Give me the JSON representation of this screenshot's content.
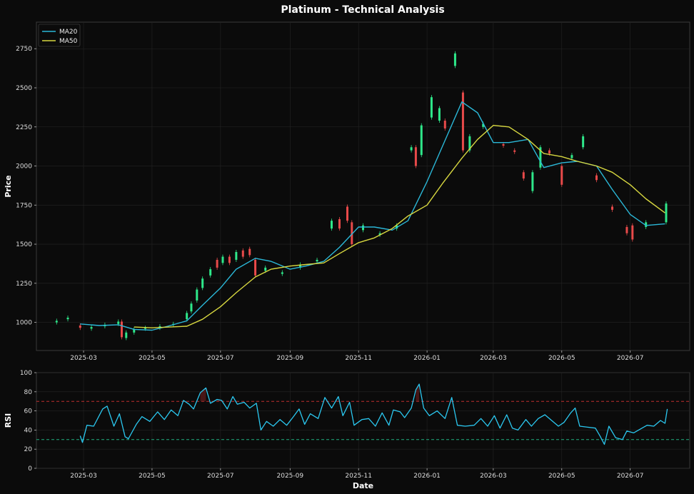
{
  "title": "Platinum - Technical Analysis",
  "colors": {
    "background": "#0b0b0b",
    "up": "#2ee88a",
    "down": "#e84a4a",
    "ma20": "#2bb8d8",
    "ma50": "#d8d840",
    "rsi": "#2bc8f0",
    "overbought": "#c03030",
    "oversold": "#20b080"
  },
  "chart_data": [
    {
      "type": "candlestick",
      "title": "Platinum - Technical Analysis",
      "ylabel": "Price",
      "xlabel": "",
      "ylim": [
        820,
        2920
      ],
      "xlim": [
        "2025-01-18",
        "2026-08-23"
      ],
      "x_ticks": [
        "2025-03",
        "2025-05",
        "2025-07",
        "2025-09",
        "2025-11",
        "2026-01",
        "2026-03",
        "2026-05",
        "2026-07"
      ],
      "y_ticks": [
        1000,
        1250,
        1500,
        1750,
        2000,
        2250,
        2500,
        2750
      ],
      "legend": {
        "position": "top-left",
        "entries": [
          "MA20",
          "MA50"
        ]
      },
      "grid": true,
      "series": [
        {
          "name": "MA20",
          "points": [
            [
              "2025-02-26",
              990
            ],
            [
              "2025-03-15",
              980
            ],
            [
              "2025-04-01",
              985
            ],
            [
              "2025-04-15",
              955
            ],
            [
              "2025-05-01",
              950
            ],
            [
              "2025-05-15",
              975
            ],
            [
              "2025-06-01",
              1010
            ],
            [
              "2025-06-15",
              1110
            ],
            [
              "2025-07-01",
              1220
            ],
            [
              "2025-07-15",
              1340
            ],
            [
              "2025-08-01",
              1410
            ],
            [
              "2025-08-15",
              1390
            ],
            [
              "2025-09-01",
              1340
            ],
            [
              "2025-09-15",
              1360
            ],
            [
              "2025-10-01",
              1390
            ],
            [
              "2025-10-15",
              1480
            ],
            [
              "2025-11-01",
              1610
            ],
            [
              "2025-11-15",
              1610
            ],
            [
              "2025-12-01",
              1590
            ],
            [
              "2025-12-15",
              1650
            ],
            [
              "2026-01-01",
              1900
            ],
            [
              "2026-01-15",
              2130
            ],
            [
              "2026-02-01",
              2410
            ],
            [
              "2026-02-15",
              2340
            ],
            [
              "2026-03-01",
              2150
            ],
            [
              "2026-03-15",
              2150
            ],
            [
              "2026-04-01",
              2170
            ],
            [
              "2026-04-15",
              1990
            ],
            [
              "2026-05-01",
              2020
            ],
            [
              "2026-05-15",
              2030
            ],
            [
              "2026-06-01",
              2000
            ],
            [
              "2026-06-15",
              1850
            ],
            [
              "2026-07-01",
              1690
            ],
            [
              "2026-07-15",
              1620
            ],
            [
              "2026-08-01",
              1630
            ]
          ]
        },
        {
          "name": "MA50",
          "points": [
            [
              "2025-04-15",
              970
            ],
            [
              "2025-05-01",
              965
            ],
            [
              "2025-06-01",
              975
            ],
            [
              "2025-06-15",
              1020
            ],
            [
              "2025-07-01",
              1100
            ],
            [
              "2025-07-15",
              1190
            ],
            [
              "2025-08-01",
              1290
            ],
            [
              "2025-08-15",
              1340
            ],
            [
              "2025-09-01",
              1360
            ],
            [
              "2025-09-15",
              1370
            ],
            [
              "2025-10-01",
              1380
            ],
            [
              "2025-10-15",
              1440
            ],
            [
              "2025-11-01",
              1510
            ],
            [
              "2025-11-15",
              1540
            ],
            [
              "2025-12-01",
              1600
            ],
            [
              "2025-12-15",
              1680
            ],
            [
              "2026-01-01",
              1750
            ],
            [
              "2026-01-15",
              1890
            ],
            [
              "2026-02-01",
              2050
            ],
            [
              "2026-02-15",
              2170
            ],
            [
              "2026-03-01",
              2260
            ],
            [
              "2026-03-15",
              2250
            ],
            [
              "2026-04-01",
              2170
            ],
            [
              "2026-04-15",
              2080
            ],
            [
              "2026-05-01",
              2060
            ],
            [
              "2026-05-15",
              2030
            ],
            [
              "2026-06-01",
              2000
            ],
            [
              "2026-06-15",
              1960
            ],
            [
              "2026-07-01",
              1880
            ],
            [
              "2026-07-15",
              1790
            ],
            [
              "2026-08-01",
              1700
            ]
          ]
        }
      ],
      "candles": [
        [
          "2025-02-05",
          1000,
          1010
        ],
        [
          "2025-02-15",
          1020,
          1030
        ],
        [
          "2025-02-26",
          980,
          965
        ],
        [
          "2025-03-08",
          960,
          970
        ],
        [
          "2025-03-20",
          975,
          985
        ],
        [
          "2025-04-01",
          990,
          1005
        ],
        [
          "2025-04-04",
          1005,
          905
        ],
        [
          "2025-04-08",
          900,
          935
        ],
        [
          "2025-04-15",
          935,
          955
        ],
        [
          "2025-04-25",
          960,
          965
        ],
        [
          "2025-05-08",
          965,
          975
        ],
        [
          "2025-05-20",
          985,
          990
        ],
        [
          "2025-06-01",
          1020,
          1060
        ],
        [
          "2025-06-05",
          1070,
          1120
        ],
        [
          "2025-06-10",
          1140,
          1210
        ],
        [
          "2025-06-15",
          1220,
          1280
        ],
        [
          "2025-06-22",
          1300,
          1340
        ],
        [
          "2025-06-28",
          1400,
          1350
        ],
        [
          "2025-07-03",
          1380,
          1420
        ],
        [
          "2025-07-09",
          1420,
          1380
        ],
        [
          "2025-07-15",
          1400,
          1450
        ],
        [
          "2025-07-21",
          1460,
          1420
        ],
        [
          "2025-07-27",
          1470,
          1430
        ],
        [
          "2025-08-01",
          1400,
          1300
        ],
        [
          "2025-08-10",
          1330,
          1350
        ],
        [
          "2025-08-25",
          1310,
          1320
        ],
        [
          "2025-09-10",
          1350,
          1370
        ],
        [
          "2025-09-25",
          1390,
          1400
        ],
        [
          "2025-10-08",
          1600,
          1650
        ],
        [
          "2025-10-15",
          1660,
          1600
        ],
        [
          "2025-10-22",
          1740,
          1650
        ],
        [
          "2025-10-26",
          1640,
          1500
        ],
        [
          "2025-11-05",
          1590,
          1620
        ],
        [
          "2025-11-20",
          1560,
          1570
        ],
        [
          "2025-12-05",
          1600,
          1620
        ],
        [
          "2025-12-18",
          2100,
          2120
        ],
        [
          "2025-12-22",
          2120,
          2000
        ],
        [
          "2025-12-27",
          2070,
          2260
        ],
        [
          "2026-01-05",
          2310,
          2440
        ],
        [
          "2026-01-12",
          2290,
          2370
        ],
        [
          "2026-01-17",
          2290,
          2240
        ],
        [
          "2026-01-26",
          2640,
          2720
        ],
        [
          "2026-02-02",
          2470,
          2100
        ],
        [
          "2026-02-08",
          2100,
          2190
        ],
        [
          "2026-02-20",
          2250,
          2270
        ],
        [
          "2026-03-10",
          2140,
          2130
        ],
        [
          "2026-03-20",
          2100,
          2090
        ],
        [
          "2026-03-28",
          1960,
          1920
        ],
        [
          "2026-04-05",
          1840,
          1960
        ],
        [
          "2026-04-12",
          1990,
          2120
        ],
        [
          "2026-04-20",
          2100,
          2080
        ],
        [
          "2026-05-01",
          2000,
          1880
        ],
        [
          "2026-05-10",
          2050,
          2070
        ],
        [
          "2026-05-20",
          2120,
          2190
        ],
        [
          "2026-06-01",
          1940,
          1910
        ],
        [
          "2026-06-15",
          1740,
          1720
        ],
        [
          "2026-06-28",
          1610,
          1570
        ],
        [
          "2026-07-03",
          1620,
          1530
        ],
        [
          "2026-07-15",
          1610,
          1640
        ],
        [
          "2026-08-02",
          1640,
          1760
        ]
      ]
    },
    {
      "type": "line",
      "title": "",
      "xlabel": "Date",
      "ylabel": "RSI",
      "ylim": [
        0,
        100
      ],
      "xlim": [
        "2025-01-18",
        "2026-08-23"
      ],
      "x_ticks": [
        "2025-03",
        "2025-05",
        "2025-07",
        "2025-09",
        "2025-11",
        "2026-01",
        "2026-03",
        "2026-05",
        "2026-07"
      ],
      "y_ticks": [
        0,
        20,
        40,
        60,
        80,
        100
      ],
      "reference_lines": [
        70,
        30
      ],
      "grid": true,
      "series": [
        {
          "name": "",
          "points": [
            [
              "2025-02-26",
              34
            ],
            [
              "2025-02-28",
              27
            ],
            [
              "2025-03-04",
              45
            ],
            [
              "2025-03-10",
              44
            ],
            [
              "2025-03-18",
              62
            ],
            [
              "2025-03-22",
              65
            ],
            [
              "2025-03-28",
              44
            ],
            [
              "2025-04-02",
              57
            ],
            [
              "2025-04-07",
              33
            ],
            [
              "2025-04-10",
              31
            ],
            [
              "2025-04-17",
              46
            ],
            [
              "2025-04-22",
              54
            ],
            [
              "2025-04-29",
              49
            ],
            [
              "2025-05-06",
              59
            ],
            [
              "2025-05-12",
              51
            ],
            [
              "2025-05-18",
              61
            ],
            [
              "2025-05-24",
              55
            ],
            [
              "2025-05-29",
              71
            ],
            [
              "2025-06-03",
              67
            ],
            [
              "2025-06-07",
              62
            ],
            [
              "2025-06-13",
              79
            ],
            [
              "2025-06-18",
              84
            ],
            [
              "2025-06-22",
              68
            ],
            [
              "2025-06-28",
              72
            ],
            [
              "2025-07-02",
              71
            ],
            [
              "2025-07-07",
              62
            ],
            [
              "2025-07-12",
              75
            ],
            [
              "2025-07-16",
              67
            ],
            [
              "2025-07-22",
              69
            ],
            [
              "2025-07-27",
              63
            ],
            [
              "2025-08-02",
              68
            ],
            [
              "2025-08-06",
              40
            ],
            [
              "2025-08-11",
              49
            ],
            [
              "2025-08-17",
              44
            ],
            [
              "2025-08-23",
              51
            ],
            [
              "2025-08-29",
              45
            ],
            [
              "2025-09-04",
              54
            ],
            [
              "2025-09-09",
              62
            ],
            [
              "2025-09-14",
              46
            ],
            [
              "2025-09-19",
              57
            ],
            [
              "2025-09-26",
              52
            ],
            [
              "2025-10-02",
              74
            ],
            [
              "2025-10-08",
              63
            ],
            [
              "2025-10-14",
              75
            ],
            [
              "2025-10-18",
              55
            ],
            [
              "2025-10-24",
              69
            ],
            [
              "2025-10-28",
              45
            ],
            [
              "2025-11-04",
              51
            ],
            [
              "2025-11-10",
              52
            ],
            [
              "2025-11-16",
              44
            ],
            [
              "2025-11-22",
              58
            ],
            [
              "2025-11-28",
              45
            ],
            [
              "2025-12-02",
              61
            ],
            [
              "2025-12-08",
              59
            ],
            [
              "2025-12-12",
              53
            ],
            [
              "2025-12-18",
              63
            ],
            [
              "2025-12-22",
              82
            ],
            [
              "2025-12-25",
              88
            ],
            [
              "2025-12-29",
              63
            ],
            [
              "2026-01-03",
              55
            ],
            [
              "2026-01-10",
              60
            ],
            [
              "2026-01-17",
              52
            ],
            [
              "2026-01-23",
              74
            ],
            [
              "2026-01-28",
              45
            ],
            [
              "2026-02-04",
              44
            ],
            [
              "2026-02-12",
              45
            ],
            [
              "2026-02-18",
              52
            ],
            [
              "2026-02-24",
              44
            ],
            [
              "2026-03-02",
              55
            ],
            [
              "2026-03-07",
              42
            ],
            [
              "2026-03-13",
              56
            ],
            [
              "2026-03-18",
              42
            ],
            [
              "2026-03-23",
              40
            ],
            [
              "2026-03-30",
              51
            ],
            [
              "2026-04-04",
              44
            ],
            [
              "2026-04-10",
              52
            ],
            [
              "2026-04-16",
              56
            ],
            [
              "2026-04-22",
              50
            ],
            [
              "2026-04-28",
              44
            ],
            [
              "2026-05-03",
              48
            ],
            [
              "2026-05-09",
              58
            ],
            [
              "2026-05-13",
              63
            ],
            [
              "2026-05-17",
              44
            ],
            [
              "2026-05-24",
              43
            ],
            [
              "2026-05-31",
              42
            ],
            [
              "2026-06-04",
              34
            ],
            [
              "2026-06-08",
              25
            ],
            [
              "2026-06-12",
              44
            ],
            [
              "2026-06-18",
              32
            ],
            [
              "2026-06-24",
              30
            ],
            [
              "2026-06-28",
              39
            ],
            [
              "2026-07-04",
              37
            ],
            [
              "2026-07-10",
              41
            ],
            [
              "2026-07-16",
              45
            ],
            [
              "2026-07-22",
              44
            ],
            [
              "2026-07-28",
              50
            ],
            [
              "2026-08-01",
              47
            ],
            [
              "2026-08-03",
              62
            ]
          ]
        }
      ]
    }
  ]
}
